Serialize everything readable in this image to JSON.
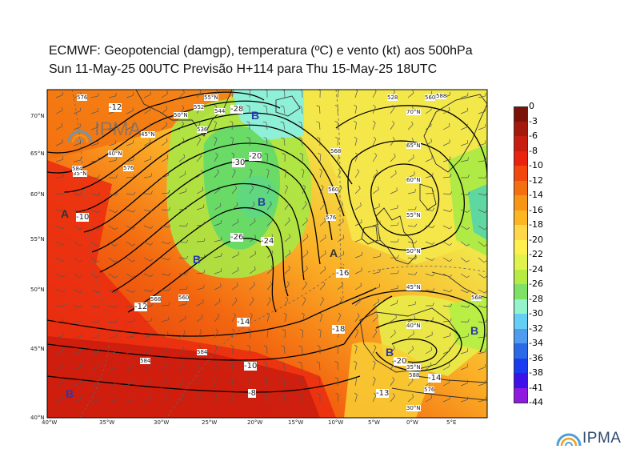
{
  "title_line1": "ECMWF:  Geopotencial (damgp), temperatura (ºC) e vento (kt) aos 500hPa",
  "title_line2": "Sun 11-May-25 00UTC Previsão H+114 para Thu 15-May-25 18UTC",
  "colorbar": {
    "labels": [
      "0",
      "-3",
      "-6",
      "-8",
      "-10",
      "-12",
      "-14",
      "-16",
      "-18",
      "-20",
      "-22",
      "-24",
      "-26",
      "-28",
      "-30",
      "-32",
      "-34",
      "-36",
      "-38",
      "-41",
      "-44"
    ],
    "colors": [
      "#7a1208",
      "#a31a0d",
      "#c81e12",
      "#e8230f",
      "#f2480e",
      "#f36f10",
      "#f79516",
      "#fdb622",
      "#ffd84a",
      "#fff04f",
      "#e0f24b",
      "#b6ec42",
      "#7ee066",
      "#93f4cc",
      "#66cef4",
      "#4e9bf0",
      "#2a6ae6",
      "#1a3cf0",
      "#3c12e8",
      "#8f1ae0",
      "#ee22ee"
    ]
  },
  "lon_ticks": [
    "40°W",
    "35°W",
    "30°W",
    "25°W",
    "20°W",
    "15°W",
    "10°W",
    "5°W",
    "0°W",
    "5°E"
  ],
  "lat_ticks": [
    "70°N",
    "65°N",
    "60°N",
    "55°N",
    "50°N",
    "45°N",
    "40°N"
  ],
  "grid_labels": [
    "45°N",
    "40°N",
    "35°N",
    "50°N",
    "55°N",
    "65°N",
    "60°N",
    "55°N",
    "50°N",
    "45°N",
    "40°N",
    "35°N",
    "30°N",
    "70°N"
  ],
  "pressure_centers": [
    "B",
    "B",
    "B",
    "A",
    "A",
    "B",
    "B",
    "B"
  ],
  "contour_labels": [
    "576",
    "584",
    "576",
    "568",
    "560",
    "552",
    "544",
    "536",
    "528",
    "560",
    "584",
    "568",
    "576",
    "568",
    "560",
    "576",
    "584",
    "588",
    "588"
  ],
  "temp_labels": [
    "-12",
    "-28",
    "-30",
    "-26",
    "-24",
    "-20",
    "-14",
    "-16",
    "-18",
    "-10",
    "-8",
    "-13",
    "-10",
    "-14",
    "-20",
    "-12"
  ],
  "logo_text": "IPMA",
  "watermark_text": "IPMA"
}
